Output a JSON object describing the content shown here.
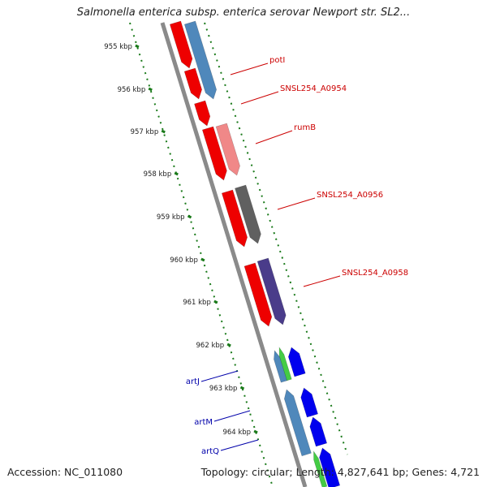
{
  "title": "Salmonella enterica subsp. enterica serovar Newport str. SL2...",
  "footer": {
    "accession": "Accession: NC_011080",
    "summary": "Topology: circular; Length: 4,827,641 bp; Genes: 4,721"
  },
  "colors": {
    "backbone": "#8a8a8a",
    "tick": "#1a7a1a",
    "forward_label": "#cc0000",
    "reverse_label": "#0000aa"
  },
  "kbp_labels": [
    "955 kbp",
    "956 kbp",
    "957 kbp",
    "958 kbp",
    "959 kbp",
    "960 kbp",
    "961 kbp",
    "962 kbp",
    "963 kbp",
    "964 kbp"
  ],
  "gene_labels": [
    {
      "name": "potI",
      "color": "#cc0000"
    },
    {
      "name": "SNSL254_A0954",
      "color": "#cc0000"
    },
    {
      "name": "rumB",
      "color": "#cc0000"
    },
    {
      "name": "SNSL254_A0956",
      "color": "#cc0000"
    },
    {
      "name": "SNSL254_A0958",
      "color": "#cc0000"
    },
    {
      "name": "artJ",
      "color": "#0000aa"
    },
    {
      "name": "artM",
      "color": "#0000aa"
    },
    {
      "name": "artQ",
      "color": "#0000aa"
    }
  ]
}
